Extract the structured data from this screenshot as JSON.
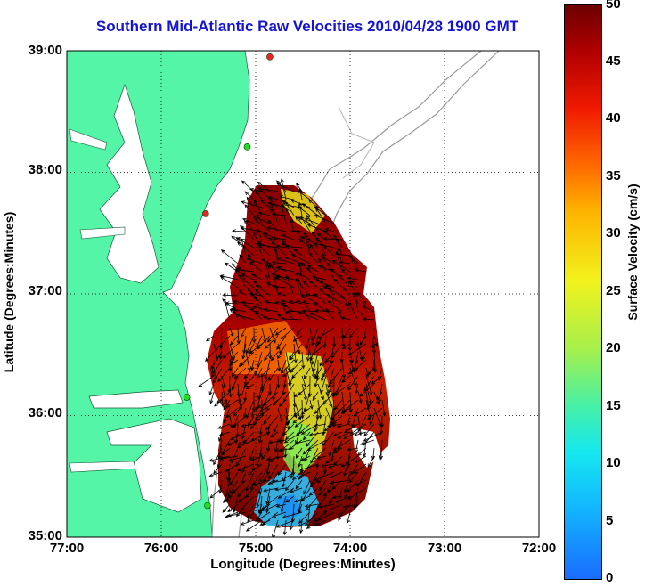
{
  "title": "Southern Mid-Atlantic Raw Velocities 2010/04/28 1900 GMT",
  "axes": {
    "xlabel": "Longitude (Degrees:Minutes)",
    "ylabel": "Latitude (Degrees:Minutes)",
    "xticks": [
      "77:00",
      "76:00",
      "75:00",
      "74:00",
      "73:00",
      "72:00"
    ],
    "yticks": [
      "39:00",
      "38:00",
      "37:00",
      "36:00",
      "35:00"
    ],
    "xlim": [
      -77,
      -72
    ],
    "ylim": [
      35,
      39
    ],
    "grid": "dotted"
  },
  "colorbar": {
    "label": "Surface Velocity (cm/s)",
    "ticks": [
      "50",
      "45",
      "40",
      "35",
      "30",
      "25",
      "20",
      "15",
      "10",
      "5",
      "0"
    ],
    "range": [
      0,
      50
    ],
    "colormap": "jet"
  },
  "colors": {
    "land": "#55f5a8",
    "title": "#1414d2",
    "bathymetry": "#999999",
    "station_green": "#22dd22",
    "station_red": "#ee2222"
  },
  "stations": [
    {
      "lon": -74.85,
      "lat": 38.95,
      "color": "red"
    },
    {
      "lon": -75.09,
      "lat": 38.21,
      "color": "green"
    },
    {
      "lon": -75.53,
      "lat": 37.66,
      "color": "red"
    },
    {
      "lon": -75.73,
      "lat": 36.15,
      "color": "green"
    },
    {
      "lon": -75.51,
      "lat": 35.26,
      "color": "green"
    }
  ]
}
